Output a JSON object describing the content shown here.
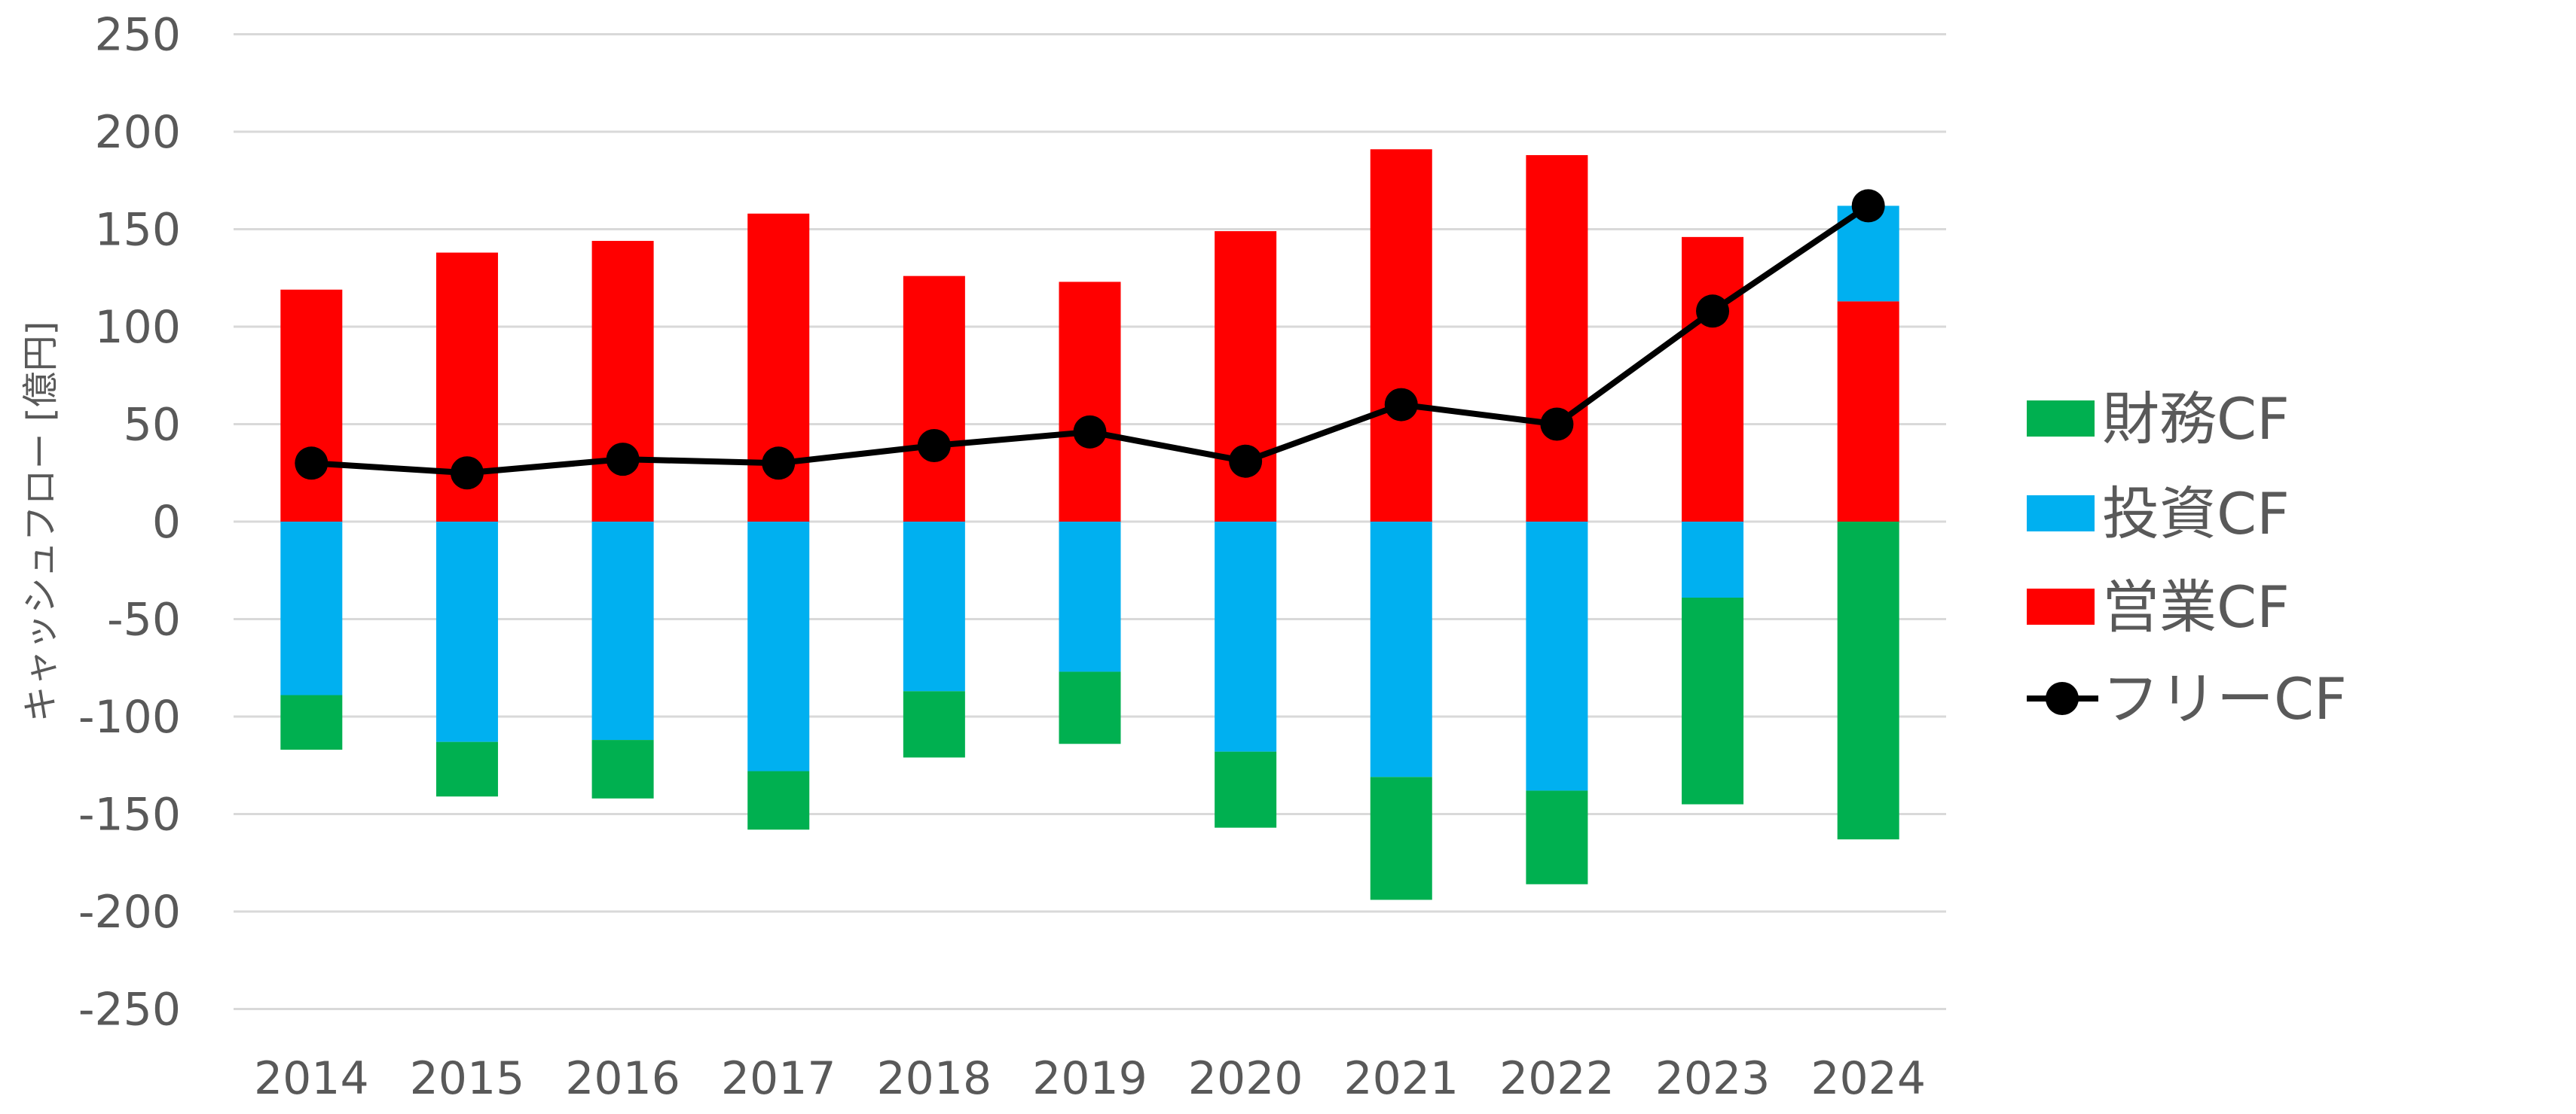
{
  "chart_data": {
    "type": "bar",
    "subtype": "stacked-bar-with-line",
    "title": "",
    "xlabel": "",
    "ylabel": "キャッシュフロー [億円]",
    "ylim": [
      -250,
      250
    ],
    "yticks": [
      -250,
      -200,
      -150,
      -100,
      -50,
      0,
      50,
      100,
      150,
      200,
      250
    ],
    "grid": true,
    "legend_position": "right",
    "categories": [
      "2014",
      "2015",
      "2016",
      "2017",
      "2018",
      "2019",
      "2020",
      "2021",
      "2022",
      "2023",
      "2024"
    ],
    "series": [
      {
        "name": "営業CF",
        "kind": "bar",
        "color": "#FF0000",
        "values": [
          119,
          138,
          144,
          158,
          126,
          123,
          149,
          191,
          188,
          146,
          113
        ]
      },
      {
        "name": "投資CF",
        "kind": "bar",
        "color": "#00B0F0",
        "values": [
          -89,
          -113,
          -112,
          -128,
          -87,
          -77,
          -118,
          -131,
          -138,
          -39,
          49
        ]
      },
      {
        "name": "財務CF",
        "kind": "bar",
        "color": "#00B050",
        "values": [
          -28,
          -28,
          -30,
          -30,
          -34,
          -37,
          -39,
          -63,
          -48,
          -106,
          -163
        ]
      },
      {
        "name": "フリーCF",
        "kind": "line",
        "color": "#000000",
        "values": [
          30,
          25,
          32,
          30,
          39,
          46,
          31,
          60,
          50,
          108,
          162
        ]
      }
    ],
    "legend_order": [
      "財務CF",
      "投資CF",
      "営業CF",
      "フリーCF"
    ]
  }
}
